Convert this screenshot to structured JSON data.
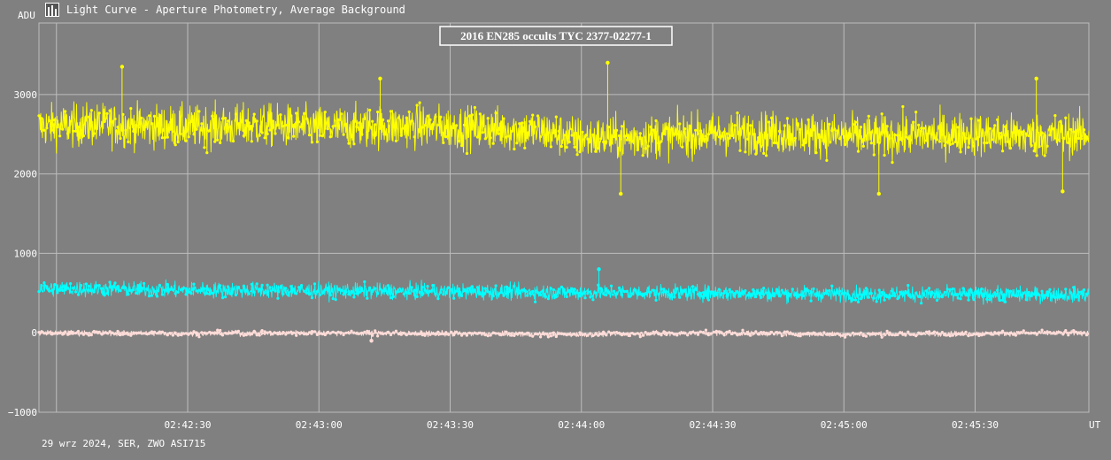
{
  "window": {
    "title": "Light Curve - Aperture Photometry, Average Background",
    "icon": "light-curve-app-icon"
  },
  "footer": {
    "text": "29 wrz 2024, SER, ZWO ASI715"
  },
  "colors": {
    "background": "#808080",
    "grid": "#bdbdbd",
    "axis_text": "#ffffff",
    "target": "#ffff00",
    "comparison": "#00ffff",
    "background_series": "#ffdcd8"
  },
  "chart_data": {
    "type": "scatter",
    "title": "2016 EN285 occults TYC 2377-02277-1",
    "xlabel": "UT",
    "ylabel": "ADU",
    "ylim": [
      -1000,
      3900
    ],
    "xlim": [
      "02:41:56",
      "02:45:56"
    ],
    "yticks": [
      -1000,
      0,
      1000,
      2000,
      3000
    ],
    "ytick_labels": [
      "−1000",
      "0",
      "1000",
      "2000",
      "3000"
    ],
    "xticks": [
      "02:42:30",
      "02:43:00",
      "02:43:30",
      "02:44:00",
      "02:44:30",
      "02:45:00",
      "02:45:30"
    ],
    "grid": true,
    "legend": "none",
    "series": [
      {
        "color": "#ffff00",
        "x": [
          "02:41:56",
          "02:42:10",
          "02:42:20",
          "02:42:30",
          "02:42:40",
          "02:42:50",
          "02:43:00",
          "02:43:10",
          "02:43:20",
          "02:43:30",
          "02:43:40",
          "02:43:50",
          "02:44:00",
          "02:44:10",
          "02:44:20",
          "02:44:30",
          "02:44:40",
          "02:44:50",
          "02:45:00",
          "02:45:10",
          "02:45:20",
          "02:45:30",
          "02:45:40",
          "02:45:50",
          "02:45:56"
        ],
        "y": [
          2600,
          2620,
          2600,
          2590,
          2600,
          2610,
          2580,
          2590,
          2600,
          2590,
          2570,
          2540,
          2450,
          2450,
          2480,
          2500,
          2520,
          2510,
          2480,
          2470,
          2500,
          2500,
          2480,
          2490,
          2500
        ],
        "spread": 250,
        "highs": [
          [
            "02:42:15",
            3350
          ],
          [
            "02:43:14",
            3200
          ],
          [
            "02:44:06",
            3400
          ],
          [
            "02:45:44",
            3200
          ]
        ],
        "lows": [
          [
            "02:44:09",
            1750
          ],
          [
            "02:45:08",
            1750
          ],
          [
            "02:45:50",
            1780
          ]
        ]
      },
      {
        "color": "#00ffff",
        "x": [
          "02:41:56",
          "02:42:30",
          "02:43:00",
          "02:43:30",
          "02:44:00",
          "02:44:30",
          "02:45:00",
          "02:45:30",
          "02:45:56"
        ],
        "y": [
          560,
          540,
          530,
          520,
          510,
          500,
          490,
          480,
          480
        ],
        "spread": 90,
        "highs": [
          [
            "02:44:04",
            800
          ]
        ],
        "lows": []
      },
      {
        "color": "#ffdcd8",
        "x": [
          "02:41:56",
          "02:42:30",
          "02:43:00",
          "02:43:30",
          "02:44:00",
          "02:44:30",
          "02:45:00",
          "02:45:30",
          "02:45:56"
        ],
        "y": [
          0,
          -10,
          0,
          -10,
          -20,
          0,
          -20,
          -10,
          0
        ],
        "spread": 30,
        "highs": [],
        "lows": [
          [
            "02:43:12",
            -100
          ]
        ]
      }
    ]
  }
}
